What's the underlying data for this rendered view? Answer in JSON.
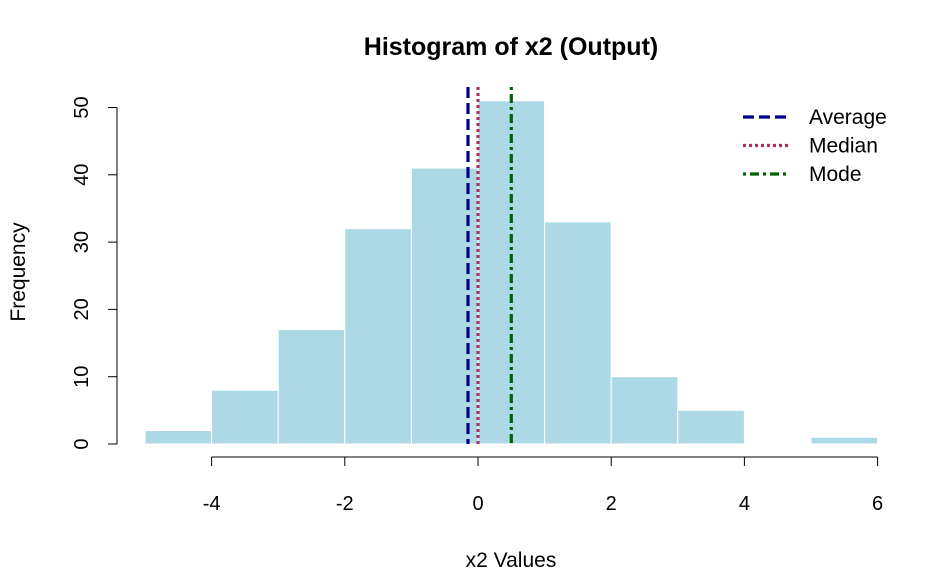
{
  "chart_data": {
    "type": "bar",
    "title": "Histogram of x2 (Output)",
    "xlabel": "x2 Values",
    "ylabel": "Frequency",
    "bins": [
      {
        "from": -5,
        "to": -4,
        "count": 2
      },
      {
        "from": -4,
        "to": -3,
        "count": 8
      },
      {
        "from": -3,
        "to": -2,
        "count": 17
      },
      {
        "from": -2,
        "to": -1,
        "count": 32
      },
      {
        "from": -1,
        "to": 0,
        "count": 41
      },
      {
        "from": 0,
        "to": 1,
        "count": 51
      },
      {
        "from": 1,
        "to": 2,
        "count": 33
      },
      {
        "from": 2,
        "to": 3,
        "count": 10
      },
      {
        "from": 3,
        "to": 4,
        "count": 5
      },
      {
        "from": 4,
        "to": 5,
        "count": 0
      },
      {
        "from": 5,
        "to": 6,
        "count": 1
      }
    ],
    "xlim": [
      -5,
      6
    ],
    "ylim": [
      0,
      51
    ],
    "x_ticks": [
      -4,
      -2,
      0,
      2,
      4,
      6
    ],
    "y_ticks": [
      0,
      10,
      20,
      30,
      40,
      50
    ],
    "bar_color": "#ADD8E6",
    "grid": false,
    "legend_position": "top-right",
    "reference_lines": [
      {
        "label": "Average",
        "value": -0.15,
        "color": "#00008B",
        "style": "dashed"
      },
      {
        "label": "Median",
        "value": 0.0,
        "color": "#B03060",
        "style": "dotted"
      },
      {
        "label": "Mode",
        "value": 0.5,
        "color": "#006400",
        "style": "dotdash"
      }
    ]
  }
}
